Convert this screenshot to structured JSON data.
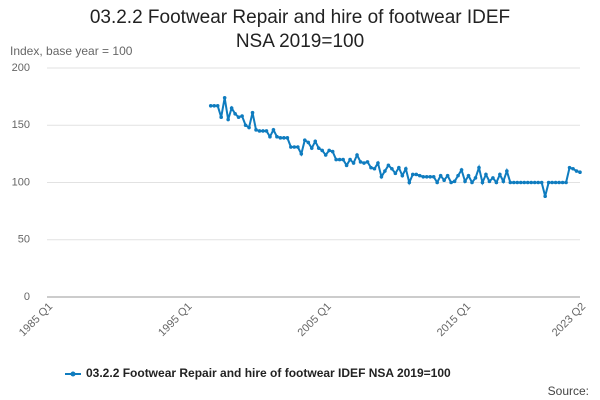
{
  "chart_data": {
    "type": "line",
    "title": "03.2.2 Footwear Repair and hire of footwear IDEF NSA 2019=100",
    "y_label": "Index, base year = 100",
    "source": "Source:",
    "categories": [
      "1985 Q1",
      null,
      null,
      null,
      null,
      null,
      null,
      null,
      null,
      null,
      null,
      null,
      null,
      null,
      null,
      null,
      null,
      null,
      null,
      null,
      null,
      null,
      null,
      null,
      null,
      null,
      null,
      null,
      null,
      null,
      null,
      null,
      null,
      null,
      null,
      null,
      null,
      null,
      null,
      null,
      "1995 Q1",
      null,
      null,
      null,
      null,
      null,
      null,
      null,
      null,
      null,
      null,
      null,
      null,
      null,
      null,
      null,
      null,
      null,
      null,
      null,
      null,
      null,
      null,
      null,
      null,
      null,
      null,
      null,
      null,
      null,
      null,
      null,
      null,
      null,
      null,
      null,
      null,
      null,
      null,
      null,
      "2005 Q1",
      null,
      null,
      null,
      null,
      null,
      null,
      null,
      null,
      null,
      null,
      null,
      null,
      null,
      null,
      null,
      null,
      null,
      null,
      null,
      null,
      null,
      null,
      null,
      null,
      null,
      null,
      null,
      null,
      null,
      null,
      null,
      null,
      null,
      null,
      null,
      null,
      null,
      null,
      null,
      "2015 Q1",
      null,
      null,
      null,
      null,
      null,
      null,
      null,
      null,
      null,
      null,
      null,
      null,
      null,
      null,
      null,
      null,
      null,
      null,
      null,
      null,
      null,
      null,
      null,
      null,
      null,
      null,
      null,
      null,
      null,
      null,
      null,
      null,
      "2023 Q2"
    ],
    "series": [
      {
        "name": "03.2.2 Footwear Repair and hire of footwear IDEF NSA 2019=100",
        "color": "#0f7cbf",
        "values": [
          null,
          null,
          null,
          null,
          null,
          null,
          null,
          null,
          null,
          null,
          null,
          null,
          null,
          null,
          null,
          null,
          null,
          null,
          null,
          null,
          null,
          null,
          null,
          null,
          null,
          null,
          null,
          null,
          null,
          null,
          null,
          null,
          null,
          null,
          null,
          null,
          null,
          null,
          null,
          null,
          null,
          null,
          null,
          null,
          null,
          null,
          null,
          167,
          167,
          167,
          157,
          174,
          155,
          165,
          160,
          157,
          158,
          150,
          148,
          161,
          146,
          145,
          145,
          145,
          140,
          146,
          140,
          139,
          139,
          139,
          131,
          131,
          131,
          125,
          137,
          135,
          130,
          136,
          130,
          128,
          124,
          128,
          127,
          120,
          120,
          120,
          115,
          120,
          117,
          124,
          118,
          117,
          118,
          113,
          112,
          117,
          105,
          110,
          115,
          112,
          108,
          113,
          106,
          112,
          100,
          107,
          107,
          106,
          105,
          105,
          105,
          105,
          100,
          106,
          102,
          106,
          100,
          101,
          106,
          111,
          101,
          106,
          100,
          104,
          113,
          100,
          107,
          101,
          104,
          100,
          107,
          101,
          110,
          100,
          100,
          100,
          100,
          100,
          100,
          100,
          100,
          100,
          100,
          88,
          100,
          100,
          100,
          100,
          100,
          100,
          113,
          112,
          110,
          109
        ]
      }
    ],
    "ylim": [
      0,
      200
    ],
    "yticks": [
      0,
      50,
      100,
      150,
      200
    ],
    "grid": true
  }
}
